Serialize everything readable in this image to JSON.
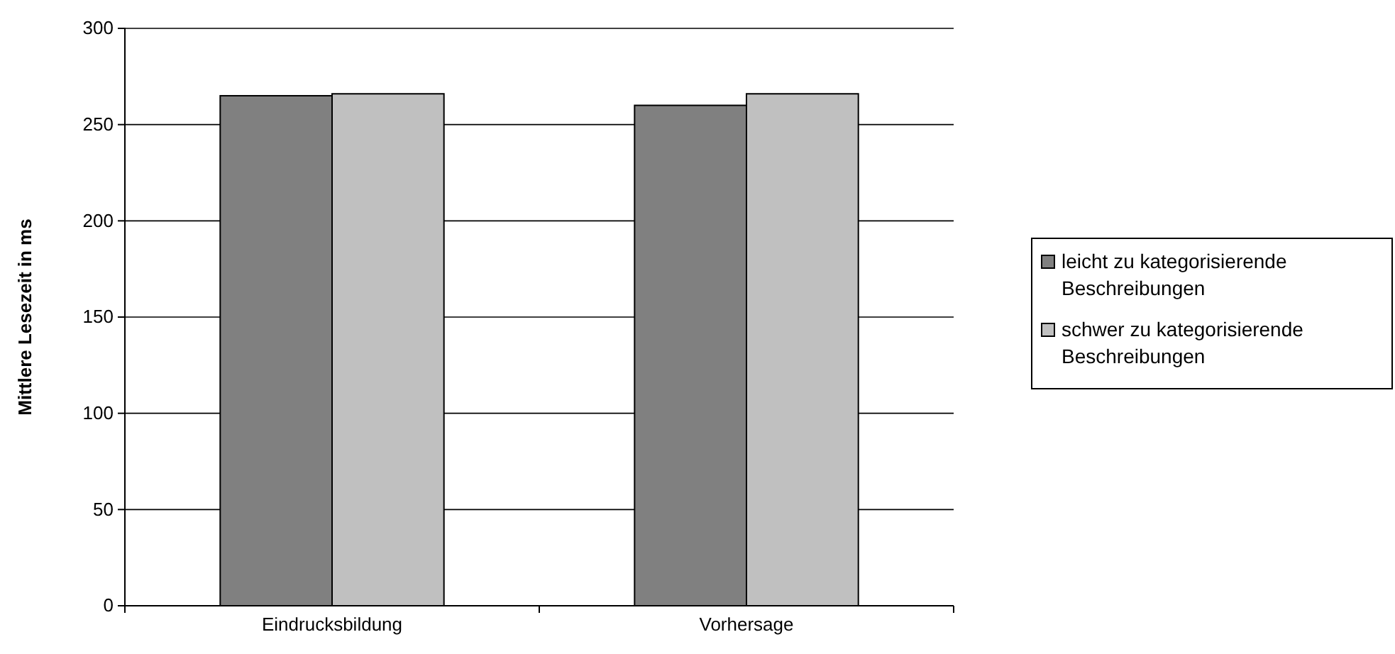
{
  "chart_data": {
    "type": "bar",
    "ylabel": "Mittlere Lesezeit in ms",
    "categories": [
      "Eindrucksbildung",
      "Vorhersage"
    ],
    "series": [
      {
        "name": "leicht zu kategorisierende Beschreibungen",
        "color": "#808080",
        "values": [
          265,
          260
        ]
      },
      {
        "name": "schwer zu kategorisierende Beschreibungen",
        "color": "#c0c0c0",
        "values": [
          266,
          266
        ]
      }
    ],
    "ylim": [
      0,
      300
    ],
    "yticks": [
      0,
      50,
      100,
      150,
      200,
      250,
      300
    ],
    "grid": "y",
    "legend": "right"
  }
}
